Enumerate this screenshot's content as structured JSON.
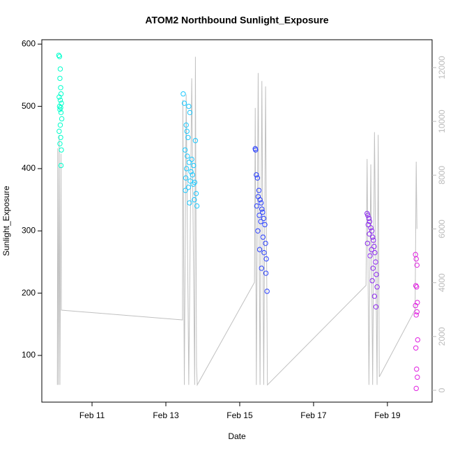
{
  "chart_data": {
    "type": "scatter",
    "title": "ATOM2 Northbound Sunlight_Exposure",
    "x_label": "Date",
    "y_label": "Sunlight_Exposure",
    "xlim": [
      9.64,
      20.21
    ],
    "xticks": [
      {
        "value": 11,
        "label": "Feb 11"
      },
      {
        "value": 13,
        "label": "Feb 13"
      },
      {
        "value": 15,
        "label": "Feb 15"
      },
      {
        "value": 17,
        "label": "Feb 17"
      },
      {
        "value": 19,
        "label": "Feb 19"
      }
    ],
    "ylim": [
      25,
      607
    ],
    "yticks": [
      100,
      200,
      300,
      400,
      500,
      600
    ],
    "y2lim": [
      -440,
      13036
    ],
    "y2ticks": [
      0,
      2000,
      4000,
      6000,
      8000,
      10000,
      12000
    ],
    "series": [
      {
        "color": "#00ffcc",
        "x": [
          10.1,
          10.12,
          10.14,
          10.13,
          10.15,
          10.16,
          10.11,
          10.14,
          10.17,
          10.12,
          10.15,
          10.13,
          10.16,
          10.18,
          10.14,
          10.11,
          10.15,
          10.13,
          10.17,
          10.16
        ],
        "values": [
          582,
          580,
          560,
          545,
          530,
          520,
          515,
          510,
          505,
          500,
          498,
          495,
          490,
          480,
          470,
          460,
          450,
          440,
          430,
          405
        ]
      },
      {
        "color": "#1ac8ff",
        "x": [
          13.47,
          13.5,
          13.62,
          13.65,
          13.55,
          13.57,
          13.6,
          13.8,
          13.52,
          13.58,
          13.7,
          13.63,
          13.75,
          13.56,
          13.68,
          13.72,
          13.54,
          13.66,
          13.78,
          13.74,
          13.61,
          13.53,
          13.82,
          13.77,
          13.64,
          13.84
        ],
        "values": [
          520,
          505,
          500,
          490,
          470,
          460,
          450,
          445,
          430,
          420,
          415,
          410,
          405,
          400,
          395,
          390,
          385,
          380,
          378,
          375,
          370,
          365,
          360,
          350,
          345,
          340
        ]
      },
      {
        "color": "#2a40ff",
        "x": [
          15.42,
          15.43,
          15.45,
          15.48,
          15.52,
          15.5,
          15.55,
          15.58,
          15.46,
          15.6,
          15.62,
          15.53,
          15.65,
          15.57,
          15.68,
          15.49,
          15.63,
          15.7,
          15.54,
          15.66,
          15.72,
          15.59,
          15.71,
          15.74
        ],
        "values": [
          432,
          430,
          390,
          385,
          365,
          355,
          350,
          345,
          340,
          335,
          330,
          325,
          320,
          315,
          310,
          300,
          290,
          280,
          270,
          265,
          255,
          240,
          232,
          203
        ]
      },
      {
        "color": "#8c28f0",
        "x": [
          18.45,
          18.47,
          18.5,
          18.52,
          18.48,
          18.55,
          18.58,
          18.51,
          18.6,
          18.62,
          18.46,
          18.64,
          18.57,
          18.66,
          18.53,
          18.68,
          18.61,
          18.7,
          18.59,
          18.72,
          18.65,
          18.69
        ],
        "values": [
          328,
          325,
          320,
          315,
          310,
          305,
          300,
          295,
          290,
          285,
          280,
          275,
          270,
          265,
          260,
          250,
          240,
          230,
          220,
          210,
          195,
          178
        ]
      },
      {
        "color": "#e020e0",
        "x": [
          19.76,
          19.78,
          19.8,
          19.77,
          19.79,
          19.81,
          19.76,
          19.8,
          19.78,
          19.82,
          19.77,
          19.79,
          19.81,
          19.78
        ],
        "values": [
          262,
          255,
          245,
          212,
          210,
          185,
          180,
          170,
          165,
          125,
          112,
          78,
          65,
          47
        ]
      },
      {
        "color": "#c0c0c0",
        "axis": "y2",
        "x": [
          10.06,
          10.07,
          10.09,
          10.11,
          10.13,
          10.16,
          10.17,
          13.45,
          13.46,
          13.5,
          13.55,
          13.62,
          13.7,
          13.78,
          13.8,
          13.83,
          13.85,
          15.4,
          15.42,
          15.45,
          15.5,
          15.55,
          15.6,
          15.65,
          15.7,
          15.75,
          18.42,
          18.45,
          18.5,
          18.55,
          18.6,
          18.65,
          18.72,
          18.75,
          18.78,
          19.75,
          19.78,
          19.8
        ],
        "values": [
          200,
          9000,
          200,
          9500,
          200,
          8800,
          2980,
          2617,
          10800,
          200,
          11000,
          200,
          11600,
          200,
          12400,
          900,
          200,
          4015,
          10500,
          200,
          11800,
          200,
          11500,
          200,
          11300,
          200,
          3900,
          8600,
          200,
          8400,
          200,
          9600,
          200,
          9500,
          500,
          3000,
          8500,
          6000
        ]
      }
    ]
  }
}
